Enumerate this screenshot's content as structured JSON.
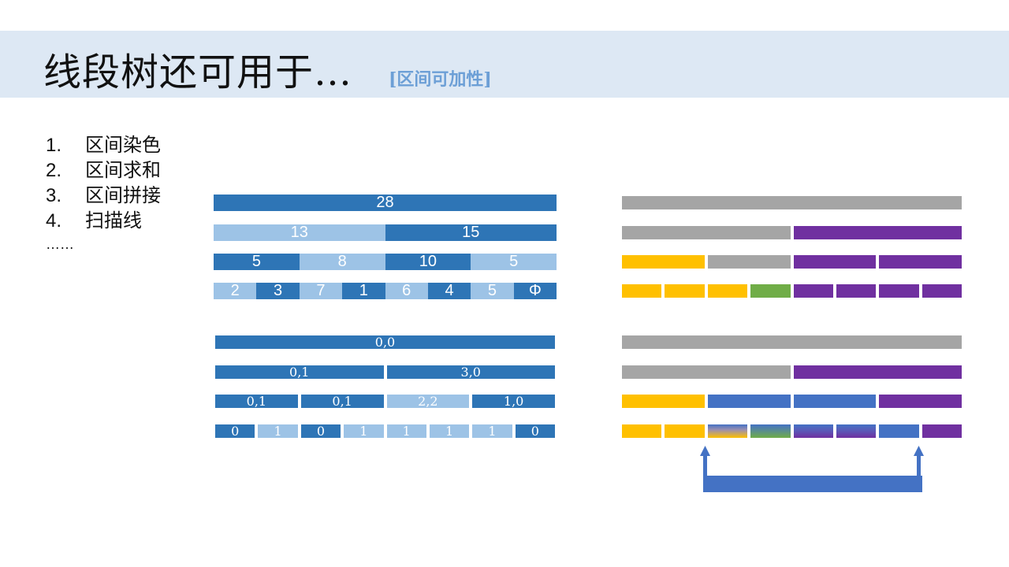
{
  "slide": {
    "title": "线段树还可用于…",
    "subtitle": "[区间可加性]",
    "list": [
      {
        "num": "1.",
        "label": "区间染色"
      },
      {
        "num": "2.",
        "label": "区间求和"
      },
      {
        "num": "3.",
        "label": "区间拼接"
      },
      {
        "num": "4.",
        "label": "扫描线"
      }
    ],
    "ellipsis": "……"
  },
  "colors": {
    "dark_blue": "#2e75b6",
    "light_blue": "#9dc3e6",
    "gray": "#a5a5a5",
    "purple": "#7030a0",
    "yellow": "#ffc000",
    "green": "#70ad47",
    "mid_blue": "#4472c4",
    "arrow": "#4472c4"
  },
  "sum_tree": [
    [
      {
        "text": "28",
        "shade": "dark"
      }
    ],
    [
      {
        "text": "13",
        "shade": "light"
      },
      {
        "text": "15",
        "shade": "dark"
      }
    ],
    [
      {
        "text": "5",
        "shade": "dark"
      },
      {
        "text": "8",
        "shade": "light"
      },
      {
        "text": "10",
        "shade": "dark"
      },
      {
        "text": "5",
        "shade": "light"
      }
    ],
    [
      {
        "text": "2",
        "shade": "light"
      },
      {
        "text": "3",
        "shade": "dark"
      },
      {
        "text": "7",
        "shade": "light"
      },
      {
        "text": "1",
        "shade": "dark"
      },
      {
        "text": "6",
        "shade": "light"
      },
      {
        "text": "4",
        "shade": "dark"
      },
      {
        "text": "5",
        "shade": "light"
      },
      {
        "text": "Φ",
        "shade": "dark"
      }
    ]
  ],
  "binary_tree": [
    [
      {
        "text": "0,0",
        "shade": "dark"
      }
    ],
    [
      {
        "text": "0,1",
        "shade": "dark"
      },
      {
        "text": "3,0",
        "shade": "dark"
      }
    ],
    [
      {
        "text": "0,1",
        "shade": "dark"
      },
      {
        "text": "0,1",
        "shade": "dark"
      },
      {
        "text": "2,2",
        "shade": "light"
      },
      {
        "text": "1,0",
        "shade": "dark"
      }
    ],
    [
      {
        "text": "0",
        "shade": "dark"
      },
      {
        "text": "1",
        "shade": "light"
      },
      {
        "text": "0",
        "shade": "dark"
      },
      {
        "text": "1",
        "shade": "light"
      },
      {
        "text": "1",
        "shade": "light"
      },
      {
        "text": "1",
        "shade": "light"
      },
      {
        "text": "1",
        "shade": "light"
      },
      {
        "text": "0",
        "shade": "dark"
      }
    ]
  ],
  "color_tree_top": [
    [
      "gray"
    ],
    [
      "gray",
      "purple"
    ],
    [
      "yellow",
      "gray",
      "purple",
      "purple"
    ],
    [
      "yellow",
      "yellow",
      "yellow",
      "green",
      "purple",
      "purple",
      "purple",
      "purple"
    ]
  ],
  "color_tree_bottom": [
    [
      "gray"
    ],
    [
      "gray",
      "purple"
    ],
    [
      "yellow",
      "mid_blue",
      "mid_blue",
      "purple"
    ],
    [
      "yellow",
      "yellow",
      "yellow_blue",
      "green_blue",
      "blue_purple",
      "blue_purple",
      "mid_blue",
      "purple"
    ]
  ]
}
